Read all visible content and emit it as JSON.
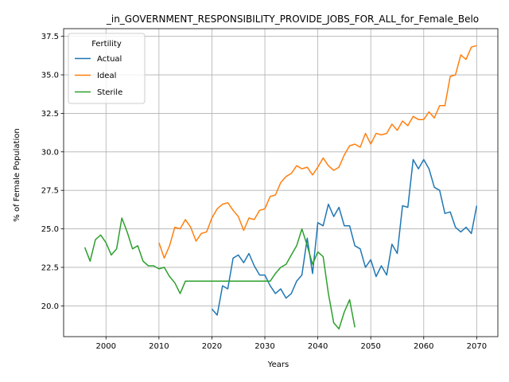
{
  "chart_data": {
    "type": "line",
    "title": "_in_GOVERNMENT_RESPONSIBILITY_PROVIDE_JOBS_FOR_ALL_for_Female_Belo",
    "xlabel": "Years",
    "ylabel": "% of Female Population",
    "xlim": [
      1992,
      2074
    ],
    "ylim": [
      18.0,
      38.0
    ],
    "xticks": [
      2000,
      2010,
      2020,
      2030,
      2040,
      2050,
      2060,
      2070
    ],
    "yticks": [
      20.0,
      22.5,
      25.0,
      27.5,
      30.0,
      32.5,
      35.0,
      37.5
    ],
    "ytick_labels": [
      "20.0",
      "22.5",
      "25.0",
      "27.5",
      "30.0",
      "32.5",
      "35.0",
      "37.5"
    ],
    "grid": true,
    "legend": {
      "title": "Fertility",
      "placement": "top-left"
    },
    "series": [
      {
        "name": "Actual",
        "color": "#1f77b4",
        "x": [
          2020,
          2021,
          2022,
          2023,
          2024,
          2025,
          2026,
          2027,
          2028,
          2029,
          2030,
          2031,
          2032,
          2033,
          2034,
          2035,
          2036,
          2037,
          2038,
          2039,
          2040,
          2041,
          2042,
          2043,
          2044,
          2045,
          2046,
          2047,
          2048,
          2049,
          2050,
          2051,
          2052,
          2053,
          2054,
          2055,
          2056,
          2057,
          2058,
          2059,
          2060,
          2061,
          2062,
          2063,
          2064,
          2065,
          2066,
          2067,
          2068,
          2069,
          2070
        ],
        "y": [
          19.8,
          19.4,
          21.3,
          21.1,
          23.1,
          23.3,
          22.8,
          23.4,
          22.6,
          22.0,
          22.0,
          21.3,
          20.8,
          21.1,
          20.5,
          20.8,
          21.6,
          22.0,
          24.4,
          22.1,
          25.4,
          25.2,
          26.6,
          25.8,
          26.4,
          25.2,
          25.2,
          23.9,
          23.7,
          22.5,
          23.0,
          21.9,
          22.6,
          22.0,
          24.0,
          23.4,
          26.5,
          26.4,
          29.5,
          28.9,
          29.5,
          28.9,
          27.7,
          27.5,
          26.0,
          26.1,
          25.1,
          24.8,
          25.1,
          24.7,
          26.5
        ]
      },
      {
        "name": "Ideal",
        "color": "#ff7f0e",
        "x": [
          2010,
          2011,
          2012,
          2013,
          2014,
          2015,
          2016,
          2017,
          2018,
          2019,
          2020,
          2021,
          2022,
          2023,
          2024,
          2025,
          2026,
          2027,
          2028,
          2029,
          2030,
          2031,
          2032,
          2033,
          2034,
          2035,
          2036,
          2037,
          2038,
          2039,
          2040,
          2041,
          2042,
          2043,
          2044,
          2045,
          2046,
          2047,
          2048,
          2049,
          2050,
          2051,
          2052,
          2053,
          2054,
          2055,
          2056,
          2057,
          2058,
          2059,
          2060,
          2061,
          2062,
          2063,
          2064,
          2065,
          2066,
          2067,
          2068,
          2069,
          2070
        ],
        "y": [
          24.1,
          23.1,
          23.9,
          25.1,
          25.0,
          25.6,
          25.1,
          24.2,
          24.7,
          24.8,
          25.7,
          26.3,
          26.6,
          26.7,
          26.2,
          25.8,
          24.9,
          25.7,
          25.6,
          26.2,
          26.3,
          27.1,
          27.2,
          28.0,
          28.4,
          28.6,
          29.1,
          28.9,
          29.0,
          28.5,
          29.0,
          29.6,
          29.1,
          28.8,
          29.0,
          29.8,
          30.4,
          30.5,
          30.3,
          31.2,
          30.5,
          31.2,
          31.1,
          31.2,
          31.8,
          31.4,
          32.0,
          31.7,
          32.3,
          32.1,
          32.1,
          32.6,
          32.2,
          33.0,
          33.0,
          34.9,
          35.0,
          36.3,
          36.0,
          36.8,
          36.9
        ]
      },
      {
        "name": "Sterile",
        "color": "#2ca02c",
        "x": [
          1996,
          1997,
          1998,
          1999,
          2000,
          2001,
          2002,
          2003,
          2004,
          2005,
          2006,
          2007,
          2008,
          2009,
          2010,
          2011,
          2012,
          2013,
          2014,
          2015,
          2016,
          2017,
          2018,
          2019,
          2020,
          2021,
          2022,
          2023,
          2024,
          2025,
          2026,
          2027,
          2028,
          2029,
          2030,
          2031,
          2032,
          2033,
          2034,
          2035,
          2036,
          2037,
          2038,
          2039,
          2040,
          2041,
          2042,
          2043,
          2044,
          2045,
          2046,
          2047
        ],
        "y": [
          23.8,
          22.9,
          24.3,
          24.6,
          24.1,
          23.3,
          23.7,
          25.7,
          24.8,
          23.7,
          23.9,
          22.9,
          22.6,
          22.6,
          22.4,
          22.5,
          21.9,
          21.5,
          20.8,
          21.6,
          21.6,
          21.6,
          21.6,
          21.6,
          21.6,
          21.6,
          21.6,
          21.6,
          21.6,
          21.6,
          21.6,
          21.6,
          21.6,
          21.6,
          21.6,
          21.6,
          22.1,
          22.5,
          22.7,
          23.3,
          23.9,
          25.0,
          23.9,
          22.7,
          23.5,
          23.2,
          20.8,
          18.9,
          18.5,
          19.6,
          20.4,
          18.6
        ]
      }
    ]
  }
}
